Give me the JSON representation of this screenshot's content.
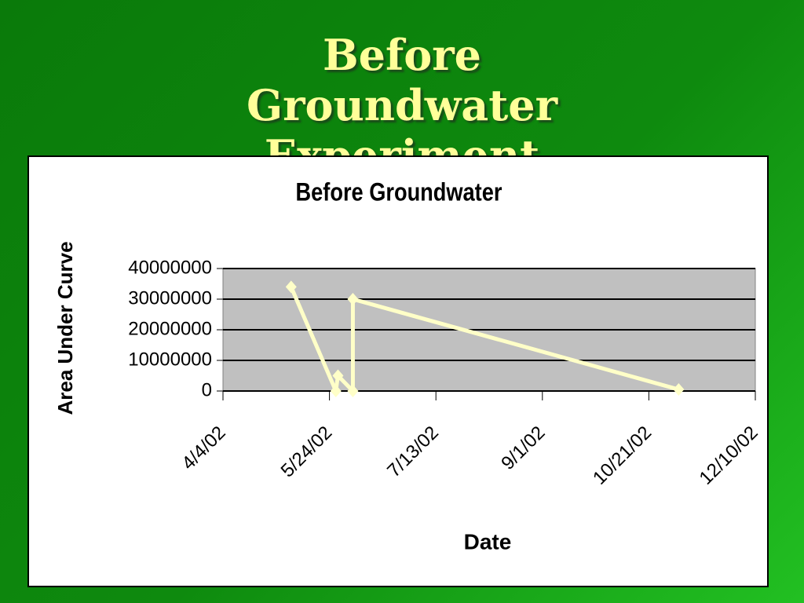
{
  "slide_title": "Before Groundwater Experiment",
  "chart_data": {
    "type": "line",
    "title": "Before Groundwater",
    "x_label": "Date",
    "y_label": "Area Under Curve",
    "x": [
      "2002-05-06",
      "2002-05-27",
      "2002-05-28",
      "2002-06-04",
      "2002-06-04",
      "2002-11-04"
    ],
    "series": [
      {
        "name": "Area Under Curve",
        "color": "#ffffc8",
        "values": [
          34000000,
          0,
          5000000,
          0,
          30000000,
          500000
        ]
      }
    ],
    "xlim": [
      "2002-04-04",
      "2002-12-10"
    ],
    "xticks": [
      {
        "value": "2002-04-04",
        "label": "4/4/02"
      },
      {
        "value": "2002-05-24",
        "label": "5/24/02"
      },
      {
        "value": "2002-07-13",
        "label": "7/13/02"
      },
      {
        "value": "2002-09-01",
        "label": "9/1/02"
      },
      {
        "value": "2002-10-21",
        "label": "10/21/02"
      },
      {
        "value": "2002-12-10",
        "label": "12/10/02"
      }
    ],
    "ylim": [
      0,
      40000000
    ],
    "yticks": [
      0,
      10000000,
      20000000,
      30000000,
      40000000
    ],
    "grid": true,
    "plot_background": "#c0c0c0"
  }
}
